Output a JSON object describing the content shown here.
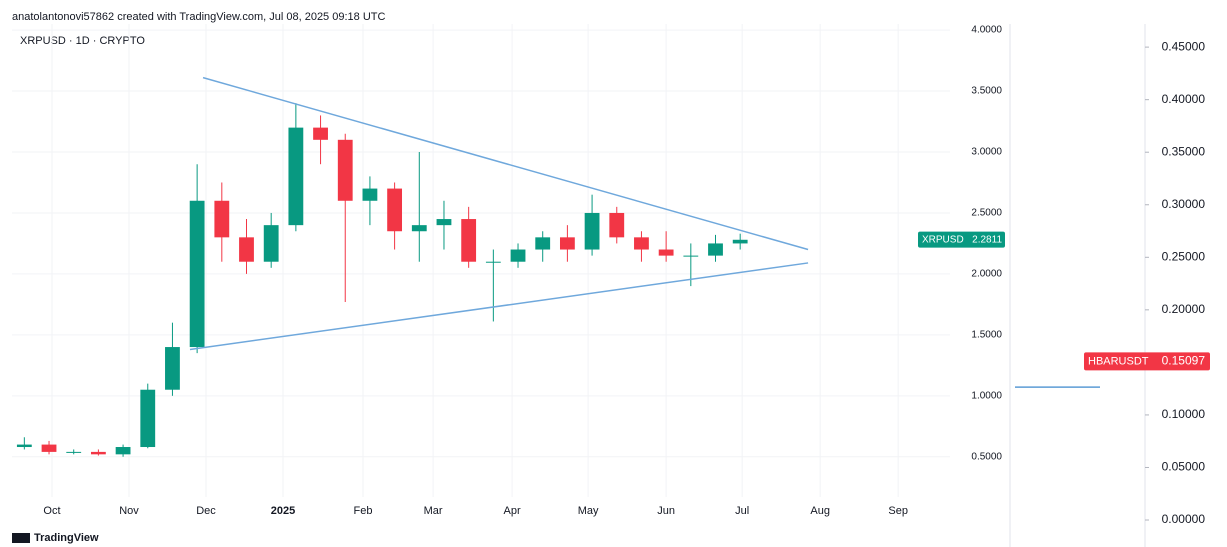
{
  "header": {
    "text": "anatolantonovi57862 created with TradingView.com, Jul 08, 2025 09:18 UTC"
  },
  "footer": {
    "brand": "TradingView"
  },
  "chart_data": [
    {
      "type": "candlestick",
      "title": "XRPUSD · 1D · CRYPTO",
      "up_color": "#089981",
      "down_color": "#f23645",
      "grid": true,
      "open": [
        0.58,
        0.6,
        0.54,
        0.54,
        0.52,
        0.58,
        1.05,
        1.4,
        2.6,
        2.3,
        2.1,
        2.4,
        3.2,
        3.1,
        2.6,
        2.7,
        2.35,
        2.4,
        2.45,
        2.1,
        2.1,
        2.2,
        2.3,
        2.2,
        2.5,
        2.3,
        2.2,
        2.15,
        2.15,
        2.25
      ],
      "high": [
        0.66,
        0.63,
        0.56,
        0.56,
        0.6,
        1.1,
        1.6,
        2.9,
        2.75,
        2.45,
        2.5,
        3.4,
        3.3,
        3.15,
        2.8,
        2.75,
        3.0,
        2.6,
        2.55,
        2.2,
        2.25,
        2.35,
        2.4,
        2.65,
        2.55,
        2.35,
        2.35,
        2.25,
        2.32,
        2.33
      ],
      "low": [
        0.56,
        0.52,
        0.52,
        0.51,
        0.5,
        0.57,
        1.0,
        1.35,
        2.1,
        2.0,
        2.05,
        2.35,
        2.9,
        1.77,
        2.4,
        2.2,
        2.1,
        2.2,
        2.05,
        1.61,
        2.05,
        2.1,
        2.1,
        2.15,
        2.25,
        2.1,
        2.1,
        1.9,
        2.1,
        2.2
      ],
      "close": [
        0.6,
        0.54,
        0.54,
        0.52,
        0.58,
        1.05,
        1.4,
        2.6,
        2.3,
        2.1,
        2.4,
        3.2,
        3.1,
        2.6,
        2.7,
        2.35,
        2.4,
        2.45,
        2.1,
        2.1,
        2.2,
        2.3,
        2.2,
        2.5,
        2.3,
        2.2,
        2.15,
        2.15,
        2.25,
        2.28
      ],
      "xlim": [
        -0.5,
        37.5
      ],
      "xticks": [
        {
          "value": 1.12,
          "label": "Oct"
        },
        {
          "value": 4.24,
          "label": "Nov"
        },
        {
          "value": 7.36,
          "label": "Dec"
        },
        {
          "value": 10.48,
          "label": "2025"
        },
        {
          "value": 13.72,
          "label": "Feb"
        },
        {
          "value": 16.56,
          "label": "Mar"
        },
        {
          "value": 19.76,
          "label": "Apr"
        },
        {
          "value": 22.84,
          "label": "May"
        },
        {
          "value": 26.0,
          "label": "Jun"
        },
        {
          "value": 29.08,
          "label": "Jul"
        },
        {
          "value": 32.24,
          "label": "Aug"
        },
        {
          "value": 35.4,
          "label": "Sep"
        }
      ],
      "ylim": [
        0.17,
        4.05
      ],
      "yticks": [
        {
          "value": 0.5,
          "label": "0.5000"
        },
        {
          "value": 1,
          "label": "1.0000"
        },
        {
          "value": 1.5,
          "label": "1.5000"
        },
        {
          "value": 2,
          "label": "2.0000"
        },
        {
          "value": 2.5,
          "label": "2.5000"
        },
        {
          "value": 3,
          "label": "3.0000"
        },
        {
          "value": 3.5,
          "label": "3.5000"
        },
        {
          "value": 4,
          "label": "4.0000"
        }
      ],
      "trendline_color": "#6fa8dc",
      "trendlines": [
        {
          "x": [
            7.24,
            31.75
          ],
          "y": [
            3.61,
            2.2
          ]
        },
        {
          "x": [
            6.71,
            31.75
          ],
          "y": [
            1.38,
            2.09
          ]
        }
      ],
      "symbol": "XRPUSD",
      "last_price": 2.2811
    },
    {
      "type": "level",
      "symbol": "HBARUSDT",
      "last_price": 0.15097,
      "tag_color": "#f23645",
      "level": 0.1265,
      "level_color": "#5b9bd5",
      "ylim": [
        -0.0095,
        0.472
      ],
      "yticks": [
        {
          "value": 0,
          "label": "0.00000"
        },
        {
          "value": 0.05,
          "label": "0.05000"
        },
        {
          "value": 0.1,
          "label": "0.10000"
        },
        {
          "value": 0.15,
          "label": "0.15000"
        },
        {
          "value": 0.2,
          "label": "0.20000"
        },
        {
          "value": 0.25,
          "label": "0.25000"
        },
        {
          "value": 0.3,
          "label": "0.30000"
        },
        {
          "value": 0.35,
          "label": "0.35000"
        },
        {
          "value": 0.4,
          "label": "0.40000"
        },
        {
          "value": 0.45,
          "label": "0.45000"
        }
      ]
    }
  ]
}
